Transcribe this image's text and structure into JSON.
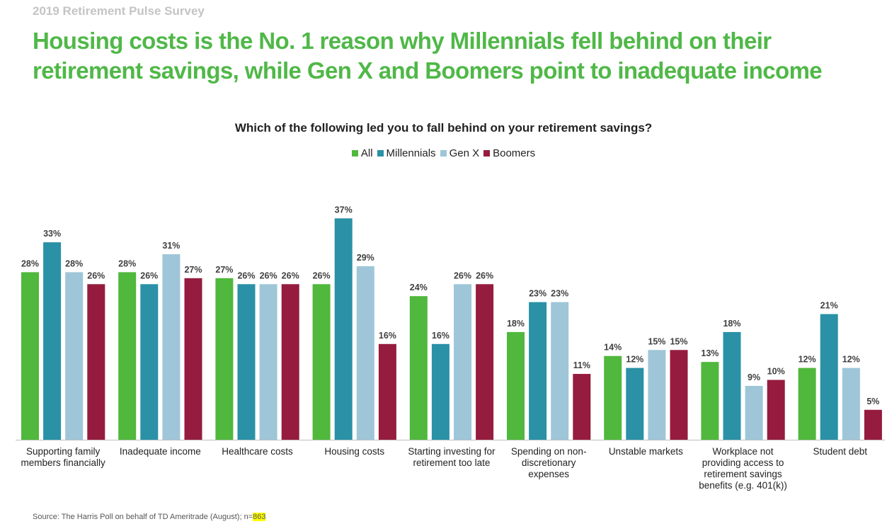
{
  "header": {
    "kicker": "2019 Retirement Pulse Survey",
    "headline": "Housing costs is the No. 1 reason why Millennials fell behind on their retirement savings, while Gen X and Boomers point to inadequate income"
  },
  "chart_data": {
    "type": "bar",
    "title": "Which of the following led you to fall behind on your retirement savings?",
    "legend_position": "top-center",
    "grid": false,
    "unit": "%",
    "ylim": [
      0,
      40
    ],
    "categories": [
      [
        "Supporting family",
        "members financially"
      ],
      [
        "Inadequate income"
      ],
      [
        "Healthcare costs"
      ],
      [
        "Housing costs"
      ],
      [
        "Starting investing for",
        "retirement too late"
      ],
      [
        "Spending on non-",
        "discretionary",
        "expenses"
      ],
      [
        "Unstable markets"
      ],
      [
        "Workplace not",
        "providing access to",
        "retirement savings",
        "benefits (e.g. 401(k))"
      ],
      [
        "Student debt"
      ]
    ],
    "series": [
      {
        "name": "All",
        "color": "#50b83c",
        "values": [
          28,
          28,
          27,
          26,
          24,
          18,
          14,
          13,
          12
        ]
      },
      {
        "name": "Millennials",
        "color": "#2a91a6",
        "values": [
          33,
          26,
          26,
          37,
          16,
          23,
          12,
          18,
          21
        ]
      },
      {
        "name": "Gen X",
        "color": "#9ec6d8",
        "values": [
          28,
          31,
          26,
          29,
          26,
          23,
          15,
          9,
          12
        ]
      },
      {
        "name": "Boomers",
        "color": "#951c3e",
        "values": [
          26,
          27,
          26,
          16,
          26,
          11,
          15,
          10,
          5
        ]
      }
    ]
  },
  "footer": {
    "source_prefix": "Source: The Harris Poll  on behalf of TD Ameritrade (August); n=",
    "source_highlight": "863"
  }
}
